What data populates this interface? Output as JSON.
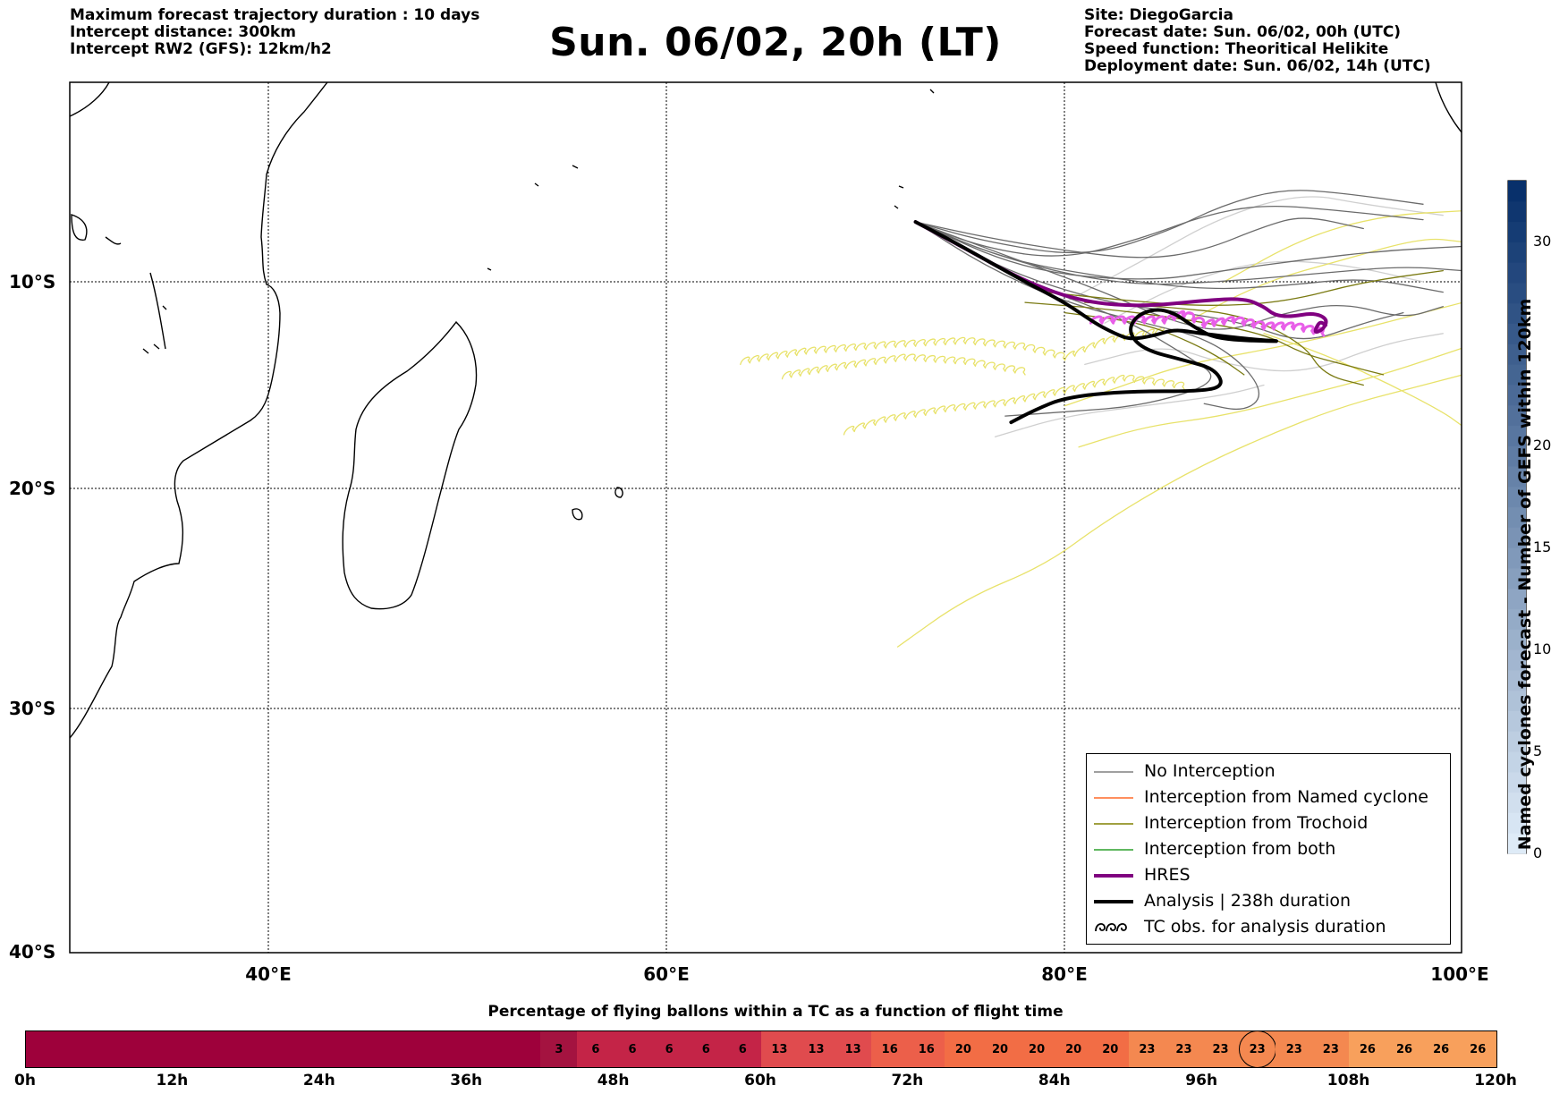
{
  "header": {
    "left": [
      "Maximum forecast trajectory duration : 10 days",
      "Intercept distance: 300km",
      "Intercept RW2 (GFS):  12km/h2"
    ],
    "title": "Sun. 06/02, 20h (LT)",
    "right": [
      "Site: DiegoGarcia",
      "Forecast date: Sun. 06/02, 00h (UTC)",
      "Speed function: Theoritical Helikite",
      "Deployment date: Sun. 06/02, 14h (UTC)"
    ]
  },
  "map": {
    "lat_labels": [
      "10°S",
      "20°S",
      "30°S",
      "40°S"
    ],
    "lon_labels": [
      "40°E",
      "60°E",
      "80°E",
      "100°E"
    ],
    "lon_range": [
      30,
      100
    ],
    "lat_range": [
      -41,
      -1
    ]
  },
  "legend": {
    "items": [
      {
        "label": "No Interception",
        "color": "#808080",
        "width": 1.5,
        "symbol": "line"
      },
      {
        "label": "Interception from Named cyclone",
        "color": "#ff6a28",
        "width": 1.5,
        "symbol": "line"
      },
      {
        "label": "Interception from Trochoid",
        "color": "#808000",
        "width": 1.5,
        "symbol": "line"
      },
      {
        "label": "Interception from both",
        "color": "#2ca02c",
        "width": 1.5,
        "symbol": "line"
      },
      {
        "label": "HRES",
        "color": "#800080",
        "width": 4,
        "symbol": "line"
      },
      {
        "label": "Analysis | 238h duration",
        "color": "#000000",
        "width": 4,
        "symbol": "line"
      },
      {
        "label": "TC obs. for analysis duration",
        "color": "#000000",
        "width": 1.5,
        "symbol": "curl"
      }
    ]
  },
  "colorbar": {
    "label": "Named cyclones forecast - Number of GEFS within 120km",
    "ticks": [
      "0",
      "5",
      "10",
      "15",
      "20",
      "30"
    ],
    "range": [
      0,
      33
    ]
  },
  "flight_bar": {
    "title": "Percentage of flying ballons within a TC as a function of flight time",
    "values": [
      0,
      0,
      0,
      0,
      0,
      0,
      0,
      0,
      0,
      0,
      0,
      0,
      0,
      0,
      3,
      6,
      6,
      6,
      6,
      6,
      13,
      13,
      13,
      16,
      16,
      20,
      20,
      20,
      20,
      20,
      23,
      23,
      23,
      23,
      23,
      23,
      26,
      26,
      26,
      26
    ],
    "highlight_index": 33,
    "time_labels": [
      "0h",
      "12h",
      "24h",
      "36h",
      "48h",
      "60h",
      "72h",
      "84h",
      "96h",
      "108h",
      "120h"
    ]
  },
  "tracks": {
    "launch": [
      72.5,
      -7.3
    ],
    "analysis": [
      [
        72.5,
        -7.3
      ],
      [
        74,
        -8
      ],
      [
        76,
        -9
      ],
      [
        78,
        -10
      ],
      [
        80,
        -11
      ],
      [
        81.5,
        -12
      ],
      [
        82.5,
        -12.5
      ],
      [
        83.3,
        -12.8
      ],
      [
        84.5,
        -12.6
      ],
      [
        85.5,
        -12.3
      ],
      [
        86.8,
        -12.5
      ],
      [
        89.5,
        -12.8
      ],
      [
        91.2,
        -12.9
      ],
      [
        87.7,
        -12.8
      ],
      [
        86.5,
        -12.2
      ],
      [
        85.5,
        -11.5
      ],
      [
        84.5,
        -11.3
      ],
      [
        83.5,
        -11.7
      ],
      [
        83.2,
        -12.5
      ],
      [
        84,
        -13.3
      ],
      [
        86,
        -13.8
      ],
      [
        87.5,
        -14.2
      ],
      [
        88,
        -15
      ],
      [
        87,
        -15.3
      ],
      [
        83,
        -15.3
      ],
      [
        80,
        -15.6
      ],
      [
        78.5,
        -16.2
      ],
      [
        77.3,
        -16.8
      ]
    ],
    "hres": [
      [
        72.5,
        -7.3
      ],
      [
        75,
        -8.5
      ],
      [
        78,
        -10
      ],
      [
        81,
        -11
      ],
      [
        84,
        -11.2
      ],
      [
        87,
        -10.9
      ],
      [
        89,
        -10.8
      ],
      [
        90,
        -11.2
      ],
      [
        90.5,
        -11.6
      ],
      [
        91.3,
        -11.7
      ],
      [
        92.5,
        -11.5
      ],
      [
        93.2,
        -11.8
      ],
      [
        93,
        -12.3
      ],
      [
        92.5,
        -12.5
      ],
      [
        92.8,
        -11.9
      ],
      [
        93.1,
        -12.1
      ]
    ],
    "hres_pink": [
      [
        81.3,
        -12
      ],
      [
        83,
        -12
      ],
      [
        85,
        -12
      ],
      [
        86,
        -11.7
      ],
      [
        87,
        -12.2
      ],
      [
        88.5,
        -12
      ],
      [
        90,
        -12.3
      ],
      [
        91.5,
        -12.3
      ],
      [
        92.5,
        -12.5
      ],
      [
        93,
        -12.6
      ]
    ],
    "gray": [
      [
        [
          72.5,
          -7.3
        ],
        [
          78,
          -9.5
        ],
        [
          84,
          -10
        ],
        [
          88,
          -9.5
        ],
        [
          92,
          -9
        ],
        [
          96,
          -8.6
        ],
        [
          100,
          -8.4
        ]
      ],
      [
        [
          72.5,
          -7.3
        ],
        [
          77,
          -9
        ],
        [
          82,
          -9.8
        ],
        [
          87,
          -10.4
        ],
        [
          91,
          -10.2
        ],
        [
          95,
          -9.8
        ],
        [
          99,
          -10.5
        ]
      ],
      [
        [
          72.5,
          -7.3
        ],
        [
          76,
          -8.5
        ],
        [
          80,
          -9
        ],
        [
          84,
          -8
        ],
        [
          87,
          -7
        ],
        [
          90,
          -6.5
        ],
        [
          94,
          -6.8
        ],
        [
          98,
          -7.2
        ]
      ],
      [
        [
          72.5,
          -7.3
        ],
        [
          77,
          -9.5
        ],
        [
          82,
          -11
        ],
        [
          86,
          -11.5
        ],
        [
          89,
          -12
        ],
        [
          92,
          -13
        ],
        [
          95,
          -12
        ],
        [
          97,
          -11.5
        ]
      ],
      [
        [
          72.5,
          -7.3
        ],
        [
          76,
          -9.3
        ],
        [
          80,
          -11
        ],
        [
          84,
          -12
        ],
        [
          87,
          -12.7
        ],
        [
          89,
          -14
        ],
        [
          90,
          -15.5
        ],
        [
          89,
          -16.3
        ],
        [
          87,
          -15.9
        ]
      ],
      [
        [
          72.5,
          -7.3
        ],
        [
          76,
          -8.2
        ],
        [
          81,
          -8.9
        ],
        [
          85,
          -7.8
        ],
        [
          88,
          -6.5
        ],
        [
          91,
          -5.8
        ],
        [
          94,
          -6
        ],
        [
          98,
          -6.5
        ]
      ],
      [
        [
          72.5,
          -7.3
        ],
        [
          77,
          -8.8
        ],
        [
          82,
          -10.5
        ],
        [
          85,
          -11.8
        ],
        [
          88,
          -12.5
        ],
        [
          91,
          -11.5
        ],
        [
          94,
          -11
        ],
        [
          97,
          -11.8
        ],
        [
          99,
          -11.2
        ]
      ],
      [
        [
          72.5,
          -7.3
        ],
        [
          78,
          -10
        ],
        [
          83,
          -11.8
        ],
        [
          86,
          -13.5
        ],
        [
          88,
          -14.8
        ],
        [
          84,
          -16
        ],
        [
          80,
          -16.3
        ],
        [
          77,
          -16.5
        ]
      ],
      [
        [
          72.5,
          -7.3
        ],
        [
          77,
          -9
        ],
        [
          83,
          -10.2
        ],
        [
          88,
          -10
        ],
        [
          93,
          -9.6
        ],
        [
          97,
          -9.3
        ],
        [
          100,
          -9.5
        ]
      ],
      [
        [
          72.5,
          -7.3
        ],
        [
          76,
          -8
        ],
        [
          80,
          -8.6
        ],
        [
          84,
          -9
        ],
        [
          87,
          -8.6
        ],
        [
          90,
          -7.5
        ],
        [
          92,
          -7
        ],
        [
          95,
          -7.6
        ]
      ]
    ],
    "light_gray": [
      [
        [
          80,
          -11
        ],
        [
          84,
          -9
        ],
        [
          88,
          -7
        ],
        [
          92,
          -6
        ],
        [
          95,
          -6.5
        ],
        [
          99,
          -7
        ]
      ],
      [
        [
          82,
          -12
        ],
        [
          86,
          -10
        ],
        [
          90,
          -9
        ],
        [
          94,
          -9.2
        ],
        [
          98,
          -10
        ]
      ],
      [
        [
          81,
          -14
        ],
        [
          85,
          -13
        ],
        [
          88,
          -14
        ],
        [
          92,
          -14.5
        ],
        [
          96,
          -13
        ],
        [
          99,
          -12.5
        ]
      ],
      [
        [
          76.5,
          -17.5
        ],
        [
          80,
          -16.5
        ],
        [
          84,
          -16
        ],
        [
          88,
          -15.5
        ],
        [
          90,
          -15
        ]
      ]
    ],
    "olive": [
      [
        [
          78,
          -11
        ],
        [
          82,
          -11.3
        ],
        [
          86,
          -11.8
        ],
        [
          90,
          -12.5
        ],
        [
          92,
          -13.5
        ],
        [
          94,
          -14
        ],
        [
          96,
          -14.5
        ]
      ],
      [
        [
          79,
          -10.5
        ],
        [
          83,
          -10.9
        ],
        [
          87,
          -11.2
        ],
        [
          91,
          -11
        ],
        [
          95,
          -10
        ],
        [
          99,
          -9.5
        ]
      ],
      [
        [
          80,
          -11.5
        ],
        [
          84,
          -12
        ],
        [
          86.5,
          -13
        ],
        [
          88,
          -13.8
        ],
        [
          89,
          -14.5
        ]
      ],
      [
        [
          81,
          -11
        ],
        [
          85,
          -11.2
        ],
        [
          89,
          -11.6
        ],
        [
          92,
          -13
        ],
        [
          93,
          -14.5
        ],
        [
          95,
          -15
        ]
      ]
    ],
    "yellow": [
      [
        [
          63.7,
          -14
        ],
        [
          67,
          -13.5
        ],
        [
          71,
          -13.2
        ],
        [
          75,
          -13
        ],
        [
          78,
          -13.3
        ],
        [
          80,
          -13.8
        ],
        [
          82,
          -13
        ],
        [
          85,
          -12.5
        ]
      ],
      [
        [
          65.8,
          -14.7
        ],
        [
          69,
          -14.2
        ],
        [
          72,
          -13.8
        ],
        [
          75,
          -14
        ],
        [
          78,
          -14.5
        ]
      ],
      [
        [
          68.9,
          -17.4
        ],
        [
          71,
          -16.8
        ],
        [
          74,
          -16.3
        ],
        [
          77,
          -16
        ],
        [
          80,
          -15.4
        ],
        [
          83,
          -14.8
        ],
        [
          86,
          -15.2
        ]
      ],
      [
        [
          71.6,
          -27.2
        ],
        [
          75,
          -25
        ],
        [
          79,
          -23.5
        ],
        [
          82,
          -21.5
        ],
        [
          86,
          -19.3
        ],
        [
          90,
          -17.5
        ],
        [
          94,
          -16
        ],
        [
          98,
          -15
        ],
        [
          100,
          -14.5
        ]
      ],
      [
        [
          80.7,
          -18
        ],
        [
          84,
          -17
        ],
        [
          88,
          -16.5
        ],
        [
          92,
          -15.5
        ],
        [
          96,
          -14.5
        ],
        [
          100,
          -13.2
        ]
      ],
      [
        [
          80,
          -16
        ],
        [
          83,
          -15
        ],
        [
          86,
          -14
        ],
        [
          90,
          -13.3
        ],
        [
          94,
          -12.5
        ],
        [
          98,
          -11.5
        ],
        [
          100,
          -11
        ]
      ],
      [
        [
          88,
          -10
        ],
        [
          92,
          -8
        ],
        [
          96,
          -7
        ],
        [
          100,
          -6.8
        ]
      ],
      [
        [
          86,
          -12
        ],
        [
          90,
          -10
        ],
        [
          94,
          -9
        ],
        [
          98,
          -8
        ],
        [
          100,
          -8.2
        ]
      ],
      [
        [
          90,
          -12.5
        ],
        [
          93,
          -13.5
        ],
        [
          96,
          -14.8
        ],
        [
          99,
          -16.3
        ],
        [
          100,
          -17
        ]
      ]
    ]
  },
  "colors": {
    "gray": "#6b6b6b",
    "light_gray": "#cfcfcf",
    "olive": "#7a7a12",
    "yellow": "#e8e26a",
    "hres": "#800080",
    "hres_pink": "#e85fe8",
    "analysis": "#000000"
  }
}
